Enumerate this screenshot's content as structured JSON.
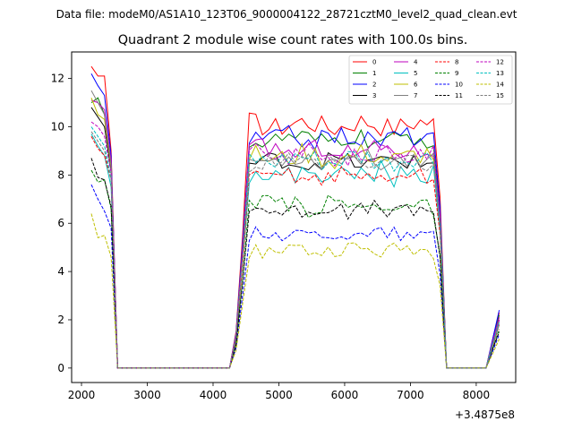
{
  "figure": {
    "suptitle": "Data file: modeM0/AS1A10_123T06_9000004122_28721cztM0_level2_quad_clean.evt",
    "offset_label": "+3.4875e8"
  },
  "chart_data": {
    "type": "line",
    "title": "Quadrant 2 module wise count rates with 100.0s bins.",
    "xlabel": "",
    "ylabel": "",
    "x_offset": 348750000,
    "xlim": [
      1850,
      8600
    ],
    "ylim": [
      -0.6,
      13.1
    ],
    "xticks": [
      2000,
      3000,
      4000,
      5000,
      6000,
      7000,
      8000
    ],
    "xtick_labels": [
      "2000",
      "3000",
      "4000",
      "5000",
      "6000",
      "7000",
      "8000"
    ],
    "yticks": [
      0,
      2,
      4,
      6,
      8,
      10,
      12
    ],
    "ytick_labels": [
      "0",
      "2",
      "4",
      "6",
      "8",
      "10",
      "12"
    ],
    "grid": false,
    "legend": {
      "placement": "top-right",
      "columns": 4
    },
    "segments": [
      {
        "x_start": 2150,
        "x_end": 2550,
        "step": 100
      },
      {
        "x_start": 2550,
        "x_end": 4250,
        "step": 100,
        "flat": 0
      },
      {
        "x_start": 4250,
        "x_end": 7550,
        "step": 100
      },
      {
        "x_start": 7550,
        "x_end": 8150,
        "step": 100,
        "flat": 0
      },
      {
        "x_start": 8150,
        "x_end": 8350,
        "step": 100
      }
    ],
    "series": [
      {
        "name": "0",
        "color": "#ff0000",
        "dashed": false,
        "pre": [
          12.5,
          12.1,
          12.1,
          9.0,
          0.0
        ],
        "mid_base": 10.1,
        "mid_var": 0.45,
        "tail": [
          0.0,
          1.2,
          2.3
        ]
      },
      {
        "name": "1",
        "color": "#008000",
        "dashed": false,
        "pre": [
          11.0,
          11.2,
          10.5,
          8.5,
          0.0
        ],
        "mid_base": 9.45,
        "mid_var": 0.4,
        "tail": [
          0.0,
          1.1,
          2.2
        ]
      },
      {
        "name": "2",
        "color": "#0000ff",
        "dashed": false,
        "pre": [
          12.2,
          11.7,
          11.3,
          8.8,
          0.0
        ],
        "mid_base": 9.55,
        "mid_var": 0.4,
        "tail": [
          0.0,
          1.2,
          2.4
        ]
      },
      {
        "name": "3",
        "color": "#000000",
        "dashed": false,
        "pre": [
          10.8,
          10.4,
          10.0,
          8.2,
          0.0
        ],
        "mid_base": 8.55,
        "mid_var": 0.35,
        "tail": [
          0.0,
          1.0,
          2.0
        ]
      },
      {
        "name": "4",
        "color": "#bf00bf",
        "dashed": false,
        "pre": [
          11.1,
          11.0,
          10.7,
          8.6,
          0.0
        ],
        "mid_base": 9.05,
        "mid_var": 0.4,
        "tail": [
          0.0,
          1.1,
          2.1
        ]
      },
      {
        "name": "5",
        "color": "#00bfbf",
        "dashed": false,
        "pre": [
          9.7,
          9.2,
          8.8,
          7.5,
          0.0
        ],
        "mid_base": 8.05,
        "mid_var": 0.5,
        "tail": [
          0.0,
          1.0,
          1.9
        ]
      },
      {
        "name": "6",
        "color": "#bfbf00",
        "dashed": false,
        "pre": [
          11.2,
          10.5,
          10.3,
          8.3,
          0.0
        ],
        "mid_base": 8.75,
        "mid_var": 0.45,
        "tail": [
          0.0,
          1.0,
          2.0
        ]
      },
      {
        "name": "7",
        "color": "#808080",
        "dashed": false,
        "pre": [
          11.5,
          11.0,
          10.5,
          8.4,
          0.0
        ],
        "mid_base": 8.65,
        "mid_var": 0.4,
        "tail": [
          0.0,
          1.0,
          2.0
        ]
      },
      {
        "name": "8",
        "color": "#ff0000",
        "dashed": true,
        "pre": [
          9.6,
          9.1,
          8.8,
          7.8,
          0.0
        ],
        "mid_base": 7.95,
        "mid_var": 0.35,
        "tail": [
          0.0,
          0.9,
          1.8
        ]
      },
      {
        "name": "9",
        "color": "#008000",
        "dashed": true,
        "pre": [
          8.2,
          7.7,
          7.8,
          6.6,
          0.0
        ],
        "mid_base": 6.75,
        "mid_var": 0.4,
        "tail": [
          0.0,
          0.8,
          1.6
        ]
      },
      {
        "name": "10",
        "color": "#0000ff",
        "dashed": true,
        "pre": [
          7.6,
          7.0,
          6.5,
          5.8,
          0.0
        ],
        "mid_base": 5.55,
        "mid_var": 0.3,
        "tail": [
          0.0,
          0.7,
          1.4
        ]
      },
      {
        "name": "11",
        "color": "#000000",
        "dashed": true,
        "pre": [
          8.7,
          7.9,
          7.8,
          6.7,
          0.0
        ],
        "mid_base": 6.55,
        "mid_var": 0.35,
        "tail": [
          0.0,
          0.8,
          1.5
        ]
      },
      {
        "name": "12",
        "color": "#bf00bf",
        "dashed": true,
        "pre": [
          10.2,
          10.0,
          9.6,
          8.1,
          0.0
        ],
        "mid_base": 8.85,
        "mid_var": 0.4,
        "tail": [
          0.0,
          1.0,
          2.0
        ]
      },
      {
        "name": "13",
        "color": "#00bfbf",
        "dashed": true,
        "pre": [
          10.0,
          9.6,
          9.2,
          7.9,
          0.0
        ],
        "mid_base": 8.55,
        "mid_var": 0.45,
        "tail": [
          0.0,
          1.0,
          1.9
        ]
      },
      {
        "name": "14",
        "color": "#bfbf00",
        "dashed": true,
        "pre": [
          6.4,
          5.4,
          5.5,
          4.6,
          0.0
        ],
        "mid_base": 4.9,
        "mid_var": 0.3,
        "tail": [
          0.0,
          0.6,
          1.2
        ]
      },
      {
        "name": "15",
        "color": "#808080",
        "dashed": true,
        "pre": [
          9.8,
          9.4,
          9.0,
          7.8,
          0.0
        ],
        "mid_base": 8.45,
        "mid_var": 0.4,
        "tail": [
          0.0,
          0.9,
          1.8
        ]
      }
    ]
  }
}
